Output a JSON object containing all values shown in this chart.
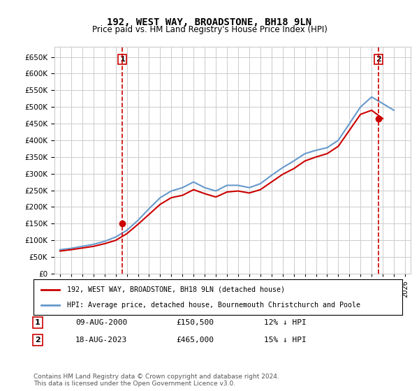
{
  "title": "192, WEST WAY, BROADSTONE, BH18 9LN",
  "subtitle": "Price paid vs. HM Land Registry's House Price Index (HPI)",
  "ylabel_ticks": [
    0,
    50000,
    100000,
    150000,
    200000,
    250000,
    300000,
    350000,
    400000,
    450000,
    500000,
    550000,
    600000,
    650000
  ],
  "ylim": [
    0,
    680000
  ],
  "transactions": [
    {
      "label": "1",
      "year": 2000.6,
      "price": 150500,
      "color": "#cc0000"
    },
    {
      "label": "2",
      "year": 2023.6,
      "price": 465000,
      "color": "#cc0000"
    }
  ],
  "transaction_table": [
    {
      "num": "1",
      "date": "09-AUG-2000",
      "price": "£150,500",
      "note": "12% ↓ HPI"
    },
    {
      "num": "2",
      "date": "18-AUG-2023",
      "price": "£465,000",
      "note": "15% ↓ HPI"
    }
  ],
  "hpi_line_color": "#6699cc",
  "price_line_color": "#cc0000",
  "grid_color": "#cccccc",
  "background_color": "#ffffff",
  "legend_label_red": "192, WEST WAY, BROADSTONE, BH18 9LN (detached house)",
  "legend_label_blue": "HPI: Average price, detached house, Bournemouth Christchurch and Poole",
  "footer": "Contains HM Land Registry data © Crown copyright and database right 2024.\nThis data is licensed under the Open Government Licence v3.0.",
  "hpi_years": [
    1995,
    1996,
    1997,
    1998,
    1999,
    2000,
    2001,
    2002,
    2003,
    2004,
    2005,
    2006,
    2007,
    2008,
    2009,
    2010,
    2011,
    2012,
    2013,
    2014,
    2015,
    2016,
    2017,
    2018,
    2019,
    2020,
    2021,
    2022,
    2023,
    2024,
    2025
  ],
  "hpi_values": [
    72000,
    76000,
    82000,
    88000,
    97000,
    110000,
    130000,
    160000,
    195000,
    228000,
    248000,
    258000,
    275000,
    258000,
    248000,
    265000,
    265000,
    258000,
    270000,
    295000,
    318000,
    338000,
    360000,
    370000,
    378000,
    400000,
    450000,
    500000,
    530000,
    510000,
    490000
  ],
  "price_years": [
    1995,
    1996,
    1997,
    1998,
    1999,
    2000,
    2001,
    2002,
    2003,
    2004,
    2005,
    2006,
    2007,
    2008,
    2009,
    2010,
    2011,
    2012,
    2013,
    2014,
    2015,
    2016,
    2017,
    2018,
    2019,
    2020,
    2021,
    2022,
    2023,
    2024
  ],
  "price_values": [
    68000,
    72000,
    77000,
    82000,
    90000,
    100000,
    120000,
    148000,
    178000,
    208000,
    228000,
    235000,
    252000,
    240000,
    230000,
    245000,
    248000,
    242000,
    252000,
    275000,
    298000,
    315000,
    338000,
    350000,
    360000,
    382000,
    430000,
    478000,
    490000,
    465000
  ]
}
